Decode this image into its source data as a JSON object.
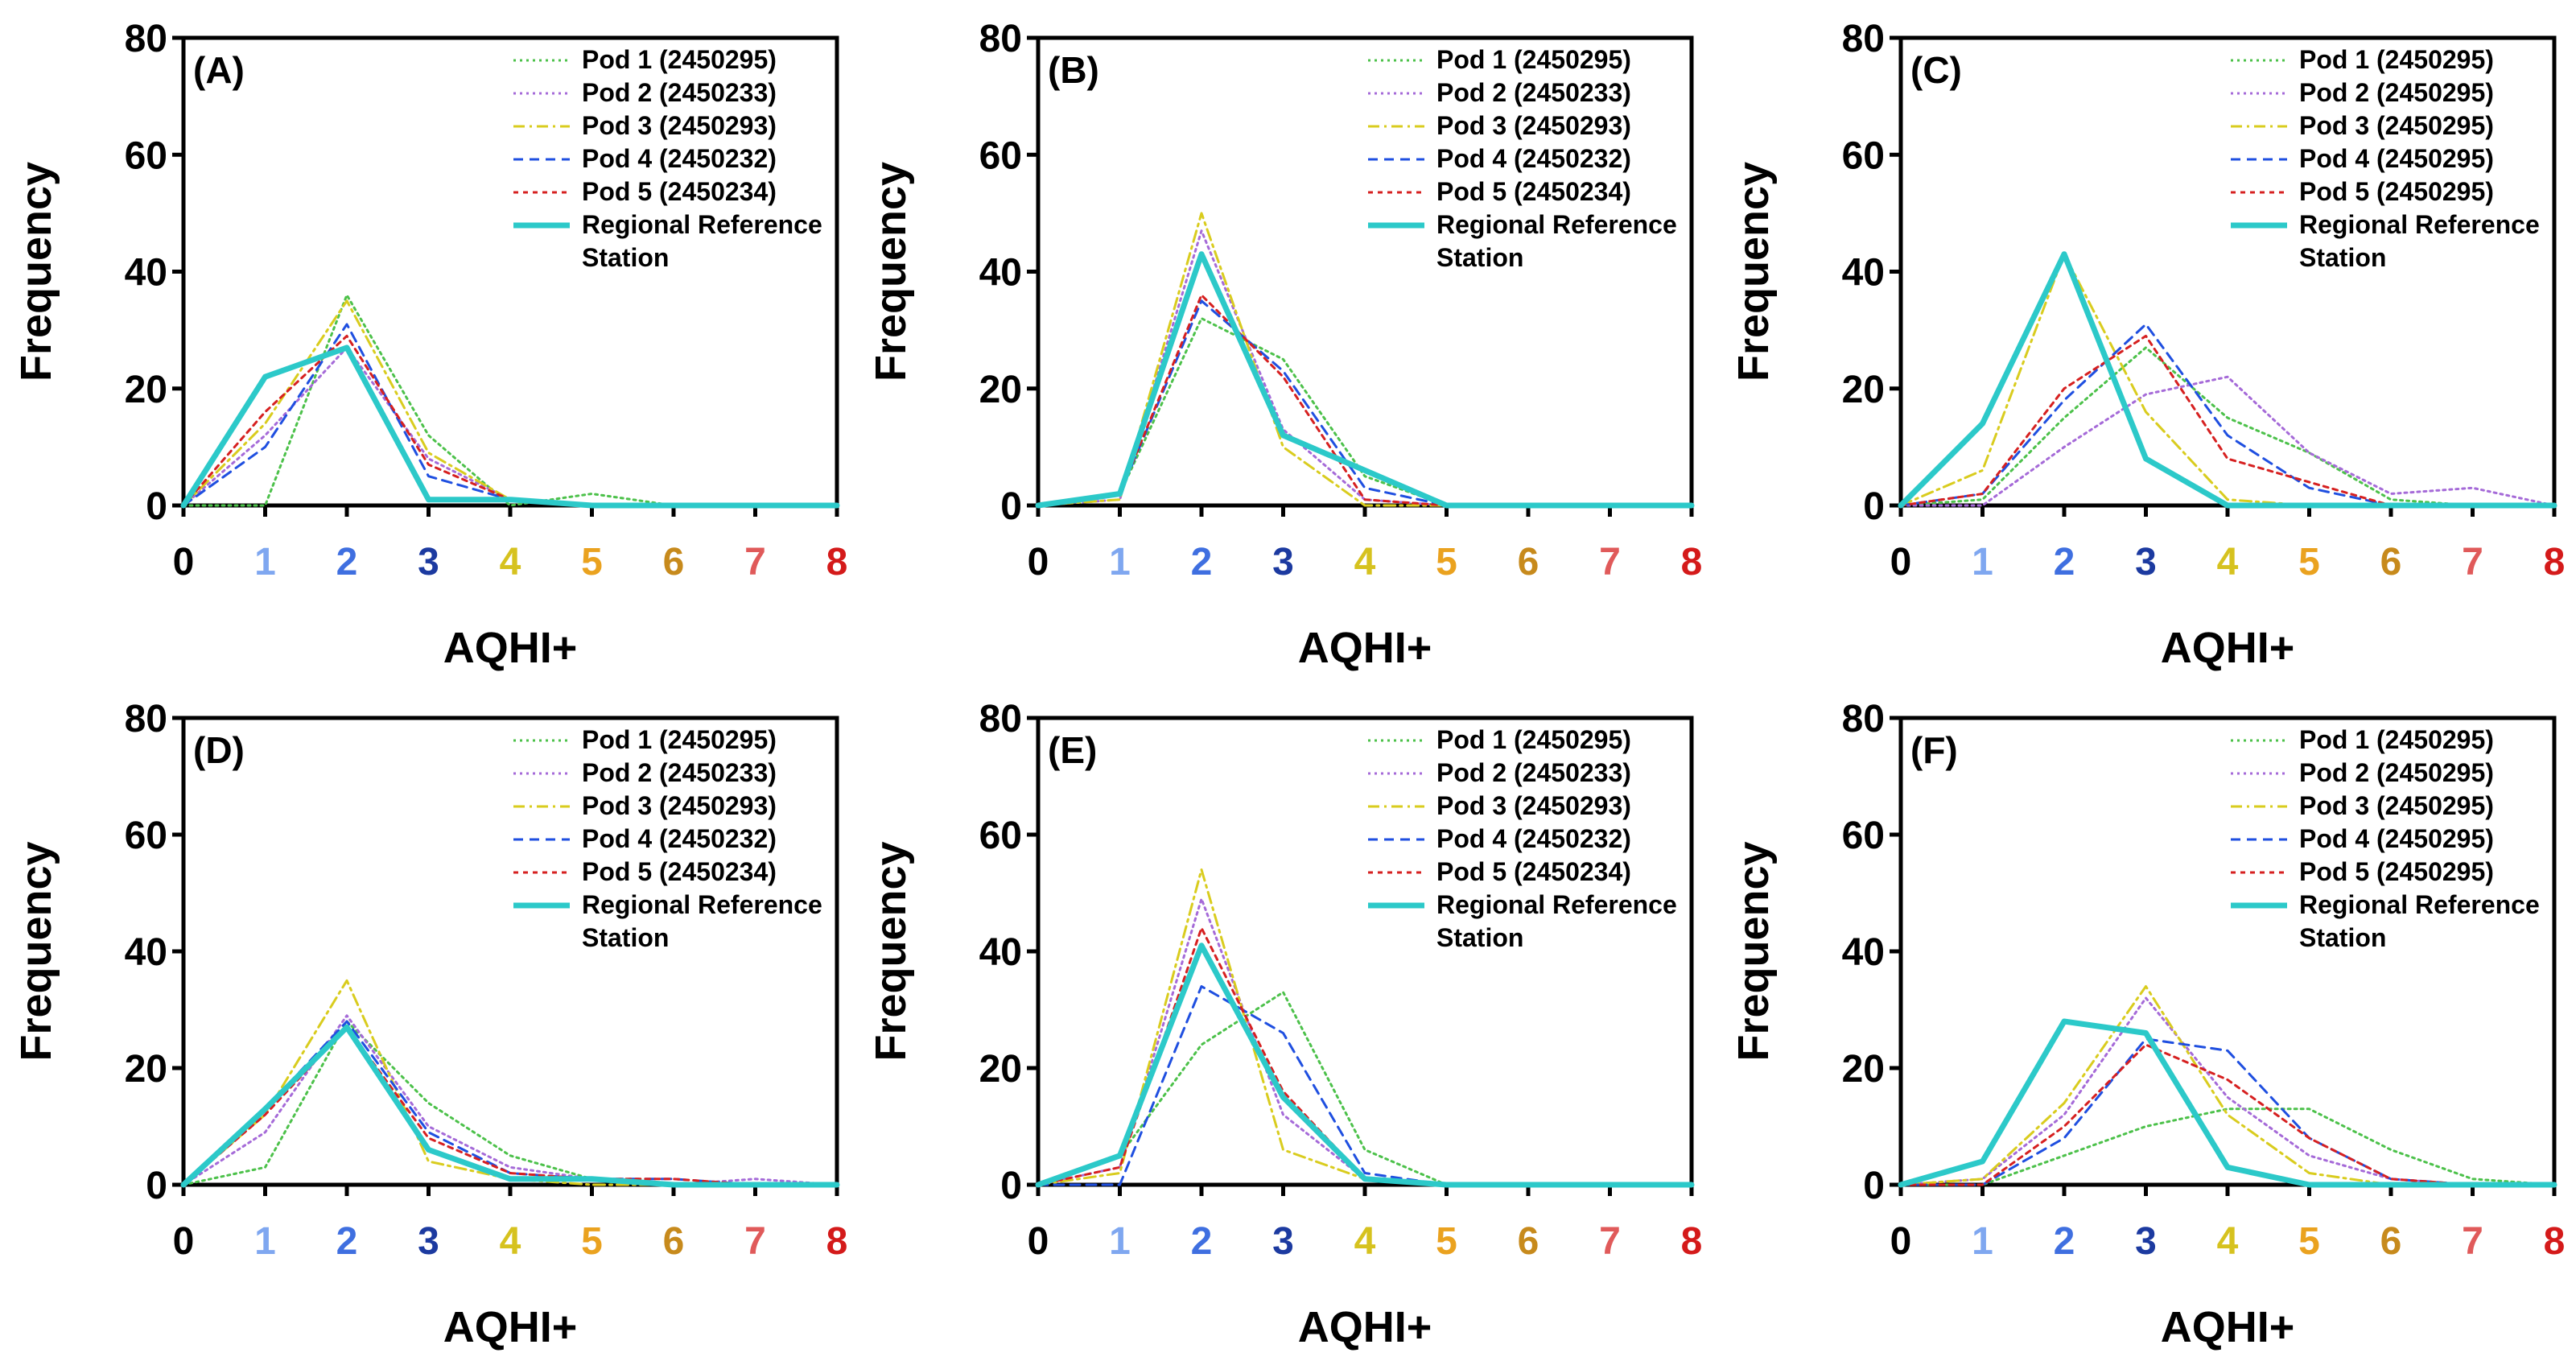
{
  "figure": {
    "background": "#ffffff"
  },
  "series_styles": [
    {
      "key": "pod1",
      "color": "#4cc14a",
      "dash": "3,5",
      "width": 3
    },
    {
      "key": "pod2",
      "color": "#a56ad8",
      "dash": "3,5",
      "width": 3
    },
    {
      "key": "pod3",
      "color": "#d9cc1e",
      "dash": "14,6,3,6",
      "width": 3
    },
    {
      "key": "pod4",
      "color": "#1f4fe0",
      "dash": "12,8",
      "width": 3
    },
    {
      "key": "pod5",
      "color": "#d62020",
      "dash": "6,6",
      "width": 3
    },
    {
      "key": "ref",
      "color": "#2cc9c9",
      "dash": "",
      "width": 7
    }
  ],
  "tick_colors": [
    "#000000",
    "#7fa7f0",
    "#3f6fe0",
    "#1c3aa0",
    "#d6c21f",
    "#eaa21f",
    "#c78a1c",
    "#e05a5a",
    "#d41a1a"
  ],
  "chart_data": [
    {
      "panel": "(A)",
      "type": "line",
      "xlabel": "AQHI+",
      "ylabel": "Frequency",
      "x": [
        0,
        1,
        2,
        3,
        4,
        5,
        6,
        7,
        8
      ],
      "xlim": [
        0,
        8
      ],
      "ylim": [
        0,
        80
      ],
      "yticks": [
        0,
        20,
        40,
        60,
        80
      ],
      "series": [
        {
          "name": "Pod 1 (2450295)",
          "values": [
            0,
            0,
            36,
            12,
            0,
            2,
            0,
            0,
            0
          ]
        },
        {
          "name": "Pod 2 (2450233)",
          "values": [
            0,
            12,
            27,
            8,
            1,
            0,
            0,
            0,
            0
          ]
        },
        {
          "name": "Pod 3 (2450293)",
          "values": [
            0,
            14,
            35,
            9,
            1,
            0,
            0,
            0,
            0
          ]
        },
        {
          "name": "Pod 4 (2450232)",
          "values": [
            0,
            10,
            31,
            5,
            1,
            0,
            0,
            0,
            0
          ]
        },
        {
          "name": "Pod 5 (2450234)",
          "values": [
            0,
            16,
            29,
            7,
            1,
            0,
            0,
            0,
            0
          ]
        },
        {
          "name": "Regional Reference Station",
          "legend_lines": [
            "Regional Reference",
            "Station"
          ],
          "values": [
            0,
            22,
            27,
            1,
            1,
            0,
            0,
            0,
            0
          ]
        }
      ]
    },
    {
      "panel": "(B)",
      "type": "line",
      "xlabel": "AQHI+",
      "ylabel": "Frequency",
      "x": [
        0,
        1,
        2,
        3,
        4,
        5,
        6,
        7,
        8
      ],
      "xlim": [
        0,
        8
      ],
      "ylim": [
        0,
        80
      ],
      "yticks": [
        0,
        20,
        40,
        60,
        80
      ],
      "series": [
        {
          "name": "Pod 1 (2450295)",
          "values": [
            0,
            2,
            32,
            25,
            5,
            0,
            0,
            0,
            0
          ]
        },
        {
          "name": "Pod 2 (2450233)",
          "values": [
            0,
            1,
            47,
            13,
            1,
            0,
            0,
            0,
            0
          ]
        },
        {
          "name": "Pod 3 (2450293)",
          "values": [
            0,
            1,
            50,
            10,
            0,
            0,
            0,
            0,
            0
          ]
        },
        {
          "name": "Pod 4 (2450232)",
          "values": [
            0,
            2,
            35,
            23,
            3,
            0,
            0,
            0,
            0
          ]
        },
        {
          "name": "Pod 5 (2450234)",
          "values": [
            0,
            2,
            36,
            22,
            1,
            0,
            0,
            0,
            0
          ]
        },
        {
          "name": "Regional Reference Station",
          "legend_lines": [
            "Regional Reference",
            "Station"
          ],
          "values": [
            0,
            2,
            43,
            12,
            6,
            0,
            0,
            0,
            0
          ]
        }
      ]
    },
    {
      "panel": "(C)",
      "type": "line",
      "xlabel": "AQHI+",
      "ylabel": "Frequency",
      "x": [
        0,
        1,
        2,
        3,
        4,
        5,
        6,
        7,
        8
      ],
      "xlim": [
        0,
        8
      ],
      "ylim": [
        0,
        80
      ],
      "yticks": [
        0,
        20,
        40,
        60,
        80
      ],
      "series": [
        {
          "name": "Pod 1 (2450295)",
          "values": [
            0,
            1,
            15,
            27,
            15,
            9,
            1,
            0,
            0
          ]
        },
        {
          "name": "Pod 2 (2450295)",
          "values": [
            0,
            0,
            10,
            19,
            22,
            9,
            2,
            3,
            0
          ]
        },
        {
          "name": "Pod 3 (2450295)",
          "values": [
            0,
            6,
            43,
            16,
            1,
            0,
            0,
            0,
            0
          ]
        },
        {
          "name": "Pod 4 (2450295)",
          "values": [
            0,
            2,
            18,
            31,
            12,
            3,
            0,
            0,
            0
          ]
        },
        {
          "name": "Pod 5 (2450295)",
          "values": [
            0,
            2,
            20,
            29,
            8,
            4,
            0,
            0,
            0
          ]
        },
        {
          "name": "Regional Reference Station",
          "legend_lines": [
            "Regional Reference",
            "Station"
          ],
          "values": [
            0,
            14,
            43,
            8,
            0,
            0,
            0,
            0,
            0
          ]
        }
      ]
    },
    {
      "panel": "(D)",
      "type": "line",
      "xlabel": "AQHI+",
      "ylabel": "Frequency",
      "x": [
        0,
        1,
        2,
        3,
        4,
        5,
        6,
        7,
        8
      ],
      "xlim": [
        0,
        8
      ],
      "ylim": [
        0,
        80
      ],
      "yticks": [
        0,
        20,
        40,
        60,
        80
      ],
      "series": [
        {
          "name": "Pod 1 (2450295)",
          "values": [
            0,
            3,
            28,
            14,
            5,
            1,
            0,
            0,
            0
          ]
        },
        {
          "name": "Pod 2 (2450233)",
          "values": [
            0,
            9,
            29,
            10,
            3,
            1,
            0,
            1,
            0
          ]
        },
        {
          "name": "Pod 3 (2450293)",
          "values": [
            0,
            12,
            35,
            4,
            1,
            0,
            0,
            0,
            0
          ]
        },
        {
          "name": "Pod 4 (2450232)",
          "values": [
            0,
            13,
            28,
            9,
            2,
            1,
            1,
            0,
            0
          ]
        },
        {
          "name": "Pod 5 (2450234)",
          "values": [
            0,
            12,
            27,
            8,
            2,
            1,
            1,
            0,
            0
          ]
        },
        {
          "name": "Regional Reference Station",
          "legend_lines": [
            "Regional Reference",
            " Station"
          ],
          "values": [
            0,
            13,
            27,
            6,
            1,
            1,
            0,
            0,
            0
          ]
        }
      ]
    },
    {
      "panel": "(E)",
      "type": "line",
      "xlabel": "AQHI+",
      "ylabel": "Frequency",
      "x": [
        0,
        1,
        2,
        3,
        4,
        5,
        6,
        7,
        8
      ],
      "xlim": [
        0,
        8
      ],
      "ylim": [
        0,
        80
      ],
      "yticks": [
        0,
        20,
        40,
        60,
        80
      ],
      "series": [
        {
          "name": "Pod 1 (2450295)",
          "values": [
            0,
            5,
            24,
            33,
            6,
            0,
            0,
            0,
            0
          ]
        },
        {
          "name": "Pod 2 (2450233)",
          "values": [
            0,
            3,
            49,
            12,
            1,
            0,
            0,
            0,
            0
          ]
        },
        {
          "name": "Pod 3 (2450293)",
          "values": [
            0,
            2,
            54,
            6,
            1,
            0,
            0,
            0,
            0
          ]
        },
        {
          "name": "Pod 4 (2450232)",
          "values": [
            0,
            0,
            34,
            26,
            2,
            0,
            0,
            0,
            0
          ]
        },
        {
          "name": "Pod 5 (2450234)",
          "values": [
            0,
            3,
            44,
            16,
            1,
            0,
            0,
            0,
            0
          ]
        },
        {
          "name": "Regional Reference Station",
          "legend_lines": [
            "Regional Reference",
            "Station"
          ],
          "values": [
            0,
            5,
            41,
            15,
            1,
            0,
            0,
            0,
            0
          ]
        }
      ]
    },
    {
      "panel": "(F)",
      "type": "line",
      "xlabel": "AQHI+",
      "ylabel": "Frequency",
      "x": [
        0,
        1,
        2,
        3,
        4,
        5,
        6,
        7,
        8
      ],
      "xlim": [
        0,
        8
      ],
      "ylim": [
        0,
        80
      ],
      "yticks": [
        0,
        20,
        40,
        60,
        80
      ],
      "series": [
        {
          "name": "Pod 1 (2450295)",
          "values": [
            0,
            0,
            5,
            10,
            13,
            13,
            6,
            1,
            0
          ]
        },
        {
          "name": "Pod 2 (2450295)",
          "values": [
            0,
            1,
            12,
            32,
            15,
            5,
            1,
            0,
            0
          ]
        },
        {
          "name": "Pod 3 (2450295)",
          "values": [
            0,
            1,
            14,
            34,
            12,
            2,
            0,
            0,
            0
          ]
        },
        {
          "name": "Pod 4 (2450295)",
          "values": [
            0,
            0,
            8,
            25,
            23,
            8,
            1,
            0,
            0
          ]
        },
        {
          "name": "Pod 5 (2450295)",
          "values": [
            0,
            0,
            10,
            24,
            18,
            8,
            1,
            0,
            0
          ]
        },
        {
          "name": "Regional Reference Station",
          "legend_lines": [
            "Regional Reference",
            "Station"
          ],
          "values": [
            0,
            4,
            28,
            26,
            3,
            0,
            0,
            0,
            0
          ]
        }
      ]
    }
  ]
}
